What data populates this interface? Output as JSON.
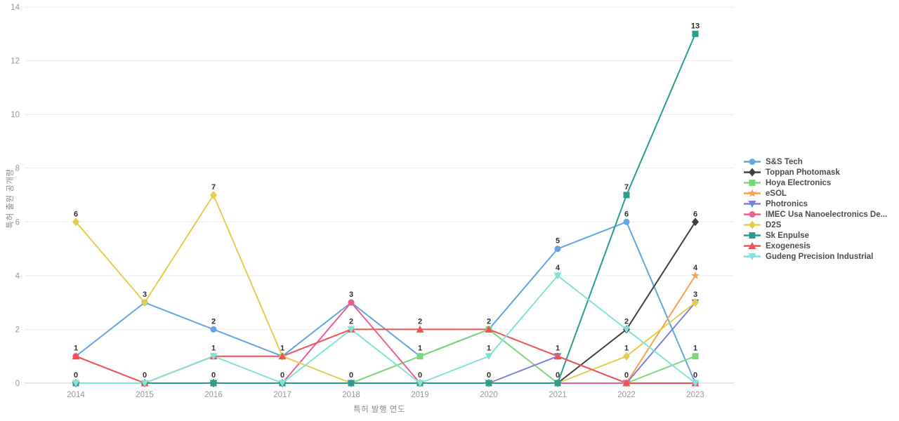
{
  "chart_data": {
    "type": "line",
    "title": "",
    "xlabel": "특허 발행 연도",
    "ylabel": "특허 출원 공개량",
    "x": [
      2014,
      2015,
      2016,
      2017,
      2018,
      2019,
      2020,
      2021,
      2022,
      2023
    ],
    "ylim": [
      0,
      14
    ],
    "yticks": [
      0,
      2,
      4,
      6,
      8,
      10,
      12,
      14
    ],
    "grid": true,
    "legend_position": "right",
    "series": [
      {
        "name": "S&S Tech",
        "color": "#61a6e3",
        "marker": "circle",
        "values": [
          1,
          3,
          2,
          1,
          3,
          1,
          2,
          5,
          6,
          0
        ]
      },
      {
        "name": "Toppan Photomask",
        "color": "#404040",
        "marker": "diamond",
        "values": [
          0,
          0,
          0,
          0,
          0,
          0,
          0,
          0,
          2,
          6
        ]
      },
      {
        "name": "Hoya Electronics",
        "color": "#79d778",
        "marker": "square",
        "values": [
          0,
          0,
          0,
          0,
          0,
          1,
          2,
          0,
          0,
          1
        ]
      },
      {
        "name": "eSOL",
        "color": "#f7a04d",
        "marker": "star",
        "values": [
          0,
          0,
          0,
          0,
          0,
          0,
          0,
          0,
          0,
          4
        ]
      },
      {
        "name": "Photronics",
        "color": "#7b80d9",
        "marker": "triangle-down",
        "values": [
          0,
          0,
          0,
          0,
          0,
          0,
          0,
          1,
          0,
          3
        ]
      },
      {
        "name": "IMEC Usa Nanoelectronics De...",
        "color": "#eb5e90",
        "marker": "circle",
        "values": [
          1,
          0,
          0,
          0,
          3,
          0,
          0,
          0,
          0,
          0
        ]
      },
      {
        "name": "D2S",
        "color": "#e5cd4d",
        "marker": "diamond",
        "values": [
          6,
          3,
          7,
          1,
          0,
          0,
          0,
          0,
          1,
          3
        ]
      },
      {
        "name": "Sk Enpulse",
        "color": "#2c9c90",
        "marker": "square",
        "values": [
          0,
          0,
          0,
          0,
          0,
          0,
          0,
          0,
          7,
          13
        ]
      },
      {
        "name": "Exogenesis",
        "color": "#ef5351",
        "marker": "triangle-up",
        "values": [
          1,
          0,
          1,
          1,
          2,
          2,
          2,
          1,
          0,
          0
        ]
      },
      {
        "name": "Gudeng Precision Industrial",
        "color": "#80e3d9",
        "marker": "triangle-down",
        "values": [
          0,
          0,
          1,
          0,
          2,
          0,
          1,
          4,
          2,
          0
        ]
      }
    ]
  },
  "colors": {
    "background": "#ffffff",
    "grid": "#ececec",
    "axis_line": "#c5d4e3",
    "tick_label": "#989898",
    "axis_title": "#8a8a8a",
    "value_label": "#2e2e2e",
    "legend_text": "#4d4d4d"
  }
}
